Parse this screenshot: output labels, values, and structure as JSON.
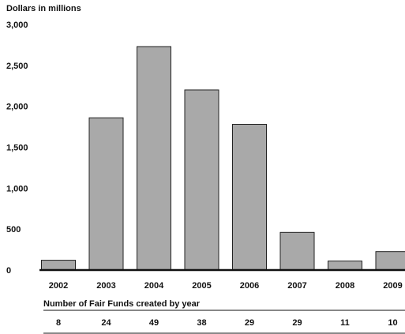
{
  "chart_data": {
    "type": "bar",
    "title": "",
    "ylabel": "Dollars in millions",
    "xlabel": "",
    "ylim": [
      0,
      3000
    ],
    "yticks": [
      0,
      500,
      1000,
      1500,
      2000,
      2500,
      3000
    ],
    "ytick_labels": [
      "0",
      "500",
      "1,000",
      "1,500",
      "2,000",
      "2,500",
      "3,000"
    ],
    "grid": false,
    "categories": [
      "2002",
      "2003",
      "2004",
      "2005",
      "2006",
      "2007",
      "2008",
      "2009"
    ],
    "values": [
      120,
      1860,
      2730,
      2200,
      1780,
      460,
      110,
      225
    ],
    "bar_color": "#a9a9a9",
    "table": {
      "title": "Number of Fair Funds created by year",
      "values": [
        "8",
        "24",
        "49",
        "38",
        "29",
        "29",
        "11",
        "10"
      ]
    }
  }
}
